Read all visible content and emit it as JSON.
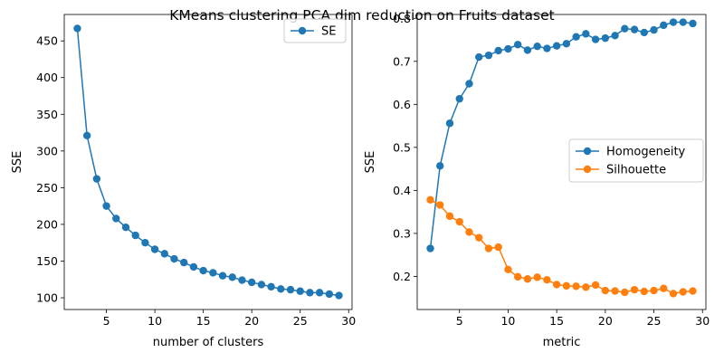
{
  "figure": {
    "suptitle": "KMeans clustering PCA dim reduction on Fruits dataset"
  },
  "chart_data": [
    {
      "type": "line",
      "xlabel": "number of clusters",
      "ylabel": "SSE",
      "xlim": [
        0.65,
        30.35
      ],
      "ylim": [
        84,
        486
      ],
      "xticks": [
        5,
        10,
        15,
        20,
        25,
        30
      ],
      "yticks": [
        100,
        150,
        200,
        250,
        300,
        350,
        400,
        450
      ],
      "legend_position": "top-right",
      "grid": false,
      "x": [
        2,
        3,
        4,
        5,
        6,
        7,
        8,
        9,
        10,
        11,
        12,
        13,
        14,
        15,
        16,
        17,
        18,
        19,
        20,
        21,
        22,
        23,
        24,
        25,
        26,
        27,
        28,
        29
      ],
      "series": [
        {
          "name": "SE",
          "color": "#1f77b4",
          "marker": "circle",
          "values": [
            467,
            321,
            262,
            225,
            208,
            196,
            185,
            175,
            166,
            160,
            153,
            148,
            142,
            137,
            134,
            130,
            128,
            124,
            121,
            118,
            115,
            112,
            111,
            109,
            107,
            107,
            105,
            103
          ]
        }
      ]
    },
    {
      "type": "line",
      "xlabel": "metric",
      "ylabel": "SSE",
      "xlim": [
        0.65,
        30.35
      ],
      "ylim": [
        0.123,
        0.809
      ],
      "xticks": [
        5,
        10,
        15,
        20,
        25,
        30
      ],
      "yticks": [
        0.2,
        0.3,
        0.4,
        0.5,
        0.6,
        0.7,
        0.8
      ],
      "legend_position": "center-right",
      "grid": false,
      "x": [
        2,
        3,
        4,
        5,
        6,
        7,
        8,
        9,
        10,
        11,
        12,
        13,
        14,
        15,
        16,
        17,
        18,
        19,
        20,
        21,
        22,
        23,
        24,
        25,
        26,
        27,
        28,
        29
      ],
      "series": [
        {
          "name": "Homogeneity",
          "color": "#1f77b4",
          "marker": "circle",
          "values": [
            0.265,
            0.457,
            0.556,
            0.613,
            0.648,
            0.71,
            0.714,
            0.725,
            0.729,
            0.739,
            0.726,
            0.735,
            0.73,
            0.736,
            0.741,
            0.757,
            0.764,
            0.751,
            0.754,
            0.76,
            0.776,
            0.774,
            0.767,
            0.773,
            0.784,
            0.791,
            0.791,
            0.788
          ]
        },
        {
          "name": "Silhouette",
          "color": "#ff7f0e",
          "marker": "circle",
          "values": [
            0.378,
            0.366,
            0.34,
            0.327,
            0.303,
            0.29,
            0.265,
            0.268,
            0.216,
            0.199,
            0.194,
            0.198,
            0.192,
            0.181,
            0.178,
            0.177,
            0.175,
            0.18,
            0.167,
            0.166,
            0.163,
            0.169,
            0.165,
            0.167,
            0.172,
            0.16,
            0.164,
            0.166
          ]
        }
      ]
    }
  ]
}
